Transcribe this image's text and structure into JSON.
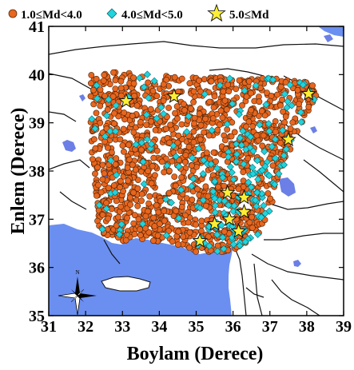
{
  "map": {
    "x_title": "Boylam (Derece)",
    "y_title": "Enlem (Derece)",
    "x_ticks": [
      31,
      32,
      33,
      34,
      35,
      36,
      37,
      38,
      39
    ],
    "y_ticks": [
      35,
      36,
      37,
      38,
      39,
      40,
      41
    ],
    "lon_range": [
      31,
      39
    ],
    "lat_range": [
      35,
      41
    ],
    "north_label": "N",
    "colors": {
      "sea": "#6b8ff0",
      "lake": "#6b7fe6",
      "land": "#ffffff",
      "fault": "#111111",
      "small_event": "#e8661e",
      "medium_event": "#21d3dc",
      "large_event": "#ffee33"
    }
  },
  "legend": {
    "items": [
      {
        "label": "1.0≤Md<4.0",
        "marker": "orange-circle"
      },
      {
        "label": "4.0≤Md<5.0",
        "marker": "cyan-diamond"
      },
      {
        "label": "5.0≤Md",
        "marker": "yellow-star"
      }
    ]
  },
  "events": {
    "large": [
      {
        "lon": 33.1,
        "lat": 39.45
      },
      {
        "lon": 34.4,
        "lat": 39.55
      },
      {
        "lon": 38.05,
        "lat": 39.6
      },
      {
        "lon": 37.5,
        "lat": 38.65
      },
      {
        "lon": 35.85,
        "lat": 37.55
      },
      {
        "lon": 36.3,
        "lat": 37.45
      },
      {
        "lon": 35.5,
        "lat": 36.9
      },
      {
        "lon": 35.9,
        "lat": 37.0
      },
      {
        "lon": 36.3,
        "lat": 37.15
      },
      {
        "lon": 36.15,
        "lat": 36.75
      },
      {
        "lon": 35.1,
        "lat": 36.55
      }
    ]
  }
}
